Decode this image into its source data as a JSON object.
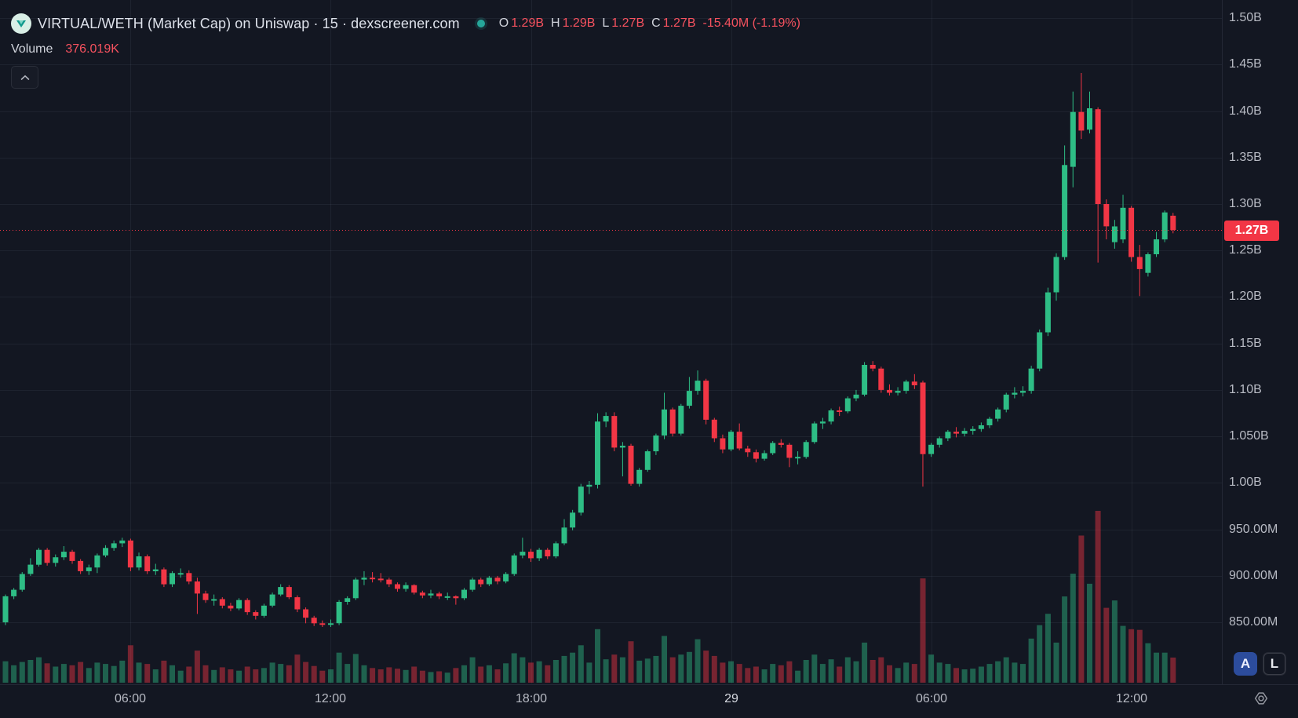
{
  "header": {
    "title": "VIRTUAL/WETH (Market Cap) on Uniswap · 15 · dexscreener.com",
    "logo": "virtual-token-logo",
    "status_icon": "data-status-dot",
    "ohlc": {
      "open_label": "O",
      "open_value": "1.29B",
      "high_label": "H",
      "high_value": "1.29B",
      "low_label": "L",
      "low_value": "1.27B",
      "close_label": "C",
      "close_value": "1.27B",
      "change": "-15.40M (-1.19%)"
    },
    "volume_label": "Volume",
    "volume_value": "376.019K",
    "collapse_icon": "chevron-up"
  },
  "price_axis": {
    "last_price_label": "1.27B"
  },
  "buttons": {
    "auto_label": "A",
    "log_label": "L",
    "settings_icon": "gear"
  },
  "colors": {
    "background": "#131722",
    "up": "#2ebd85",
    "down": "#f23645",
    "grid": "rgba(170,180,210,0.08)",
    "axis_text": "#b8bbc4",
    "legend_text": "#d1d4dc",
    "value_text": "#f7525f",
    "badge_bg": "#f23645",
    "status_dot": "#26a69a"
  },
  "chart_data": {
    "type": "candlestick_with_volume",
    "title": "VIRTUAL/WETH (Market Cap) on Uniswap",
    "interval": "15m",
    "price_unit": "B (market cap)",
    "volume_unit": "K",
    "ylim": [
      0.802,
      1.5195
    ],
    "grid": true,
    "last_price": 1.272,
    "y_ticks": [
      {
        "label": "1.50B",
        "value": 1.5
      },
      {
        "label": "1.45B",
        "value": 1.45
      },
      {
        "label": "1.40B",
        "value": 1.4
      },
      {
        "label": "1.35B",
        "value": 1.35
      },
      {
        "label": "1.30B",
        "value": 1.3
      },
      {
        "label": "1.25B",
        "value": 1.25
      },
      {
        "label": "1.20B",
        "value": 1.2
      },
      {
        "label": "1.15B",
        "value": 1.15
      },
      {
        "label": "1.10B",
        "value": 1.1
      },
      {
        "label": "1.050B",
        "value": 1.05
      },
      {
        "label": "1.00B",
        "value": 1.0
      },
      {
        "label": "950.00M",
        "value": 0.95
      },
      {
        "label": "900.00M",
        "value": 0.9
      },
      {
        "label": "850.00M",
        "value": 0.85
      }
    ],
    "x_ticks": [
      {
        "label": "06:00",
        "index": 15,
        "day_change": false
      },
      {
        "label": "12:00",
        "index": 39,
        "day_change": false
      },
      {
        "label": "18:00",
        "index": 63,
        "day_change": false
      },
      {
        "label": "29",
        "index": 87,
        "day_change": true
      },
      {
        "label": "06:00",
        "index": 111,
        "day_change": false
      },
      {
        "label": "12:00",
        "index": 135,
        "day_change": false
      }
    ],
    "candles_format": [
      "open",
      "high",
      "low",
      "close",
      "volume"
    ],
    "candles": [
      [
        0.85,
        0.88,
        0.847,
        0.878,
        320
      ],
      [
        0.878,
        0.887,
        0.875,
        0.885,
        260
      ],
      [
        0.885,
        0.904,
        0.883,
        0.902,
        310
      ],
      [
        0.902,
        0.919,
        0.9,
        0.912,
        340
      ],
      [
        0.912,
        0.93,
        0.91,
        0.928,
        380
      ],
      [
        0.928,
        0.93,
        0.911,
        0.914,
        290
      ],
      [
        0.914,
        0.923,
        0.91,
        0.92,
        240
      ],
      [
        0.92,
        0.932,
        0.917,
        0.926,
        280
      ],
      [
        0.926,
        0.928,
        0.913,
        0.916,
        260
      ],
      [
        0.916,
        0.918,
        0.902,
        0.905,
        310
      ],
      [
        0.905,
        0.912,
        0.901,
        0.909,
        220
      ],
      [
        0.909,
        0.924,
        0.903,
        0.922,
        300
      ],
      [
        0.922,
        0.933,
        0.92,
        0.93,
        280
      ],
      [
        0.93,
        0.938,
        0.927,
        0.935,
        250
      ],
      [
        0.935,
        0.941,
        0.931,
        0.938,
        330
      ],
      [
        0.938,
        0.94,
        0.905,
        0.909,
        560
      ],
      [
        0.909,
        0.925,
        0.906,
        0.921,
        300
      ],
      [
        0.921,
        0.923,
        0.902,
        0.905,
        280
      ],
      [
        0.905,
        0.913,
        0.901,
        0.907,
        200
      ],
      [
        0.907,
        0.909,
        0.888,
        0.891,
        330
      ],
      [
        0.891,
        0.905,
        0.888,
        0.903,
        260
      ],
      [
        0.903,
        0.908,
        0.898,
        0.903,
        180
      ],
      [
        0.903,
        0.906,
        0.891,
        0.894,
        240
      ],
      [
        0.894,
        0.898,
        0.859,
        0.881,
        480
      ],
      [
        0.881,
        0.884,
        0.871,
        0.874,
        260
      ],
      [
        0.874,
        0.88,
        0.868,
        0.875,
        190
      ],
      [
        0.875,
        0.877,
        0.865,
        0.868,
        230
      ],
      [
        0.868,
        0.871,
        0.862,
        0.865,
        200
      ],
      [
        0.865,
        0.876,
        0.863,
        0.874,
        180
      ],
      [
        0.874,
        0.876,
        0.858,
        0.861,
        240
      ],
      [
        0.861,
        0.863,
        0.853,
        0.857,
        200
      ],
      [
        0.857,
        0.87,
        0.855,
        0.868,
        220
      ],
      [
        0.868,
        0.882,
        0.866,
        0.88,
        300
      ],
      [
        0.88,
        0.891,
        0.878,
        0.888,
        280
      ],
      [
        0.888,
        0.89,
        0.875,
        0.877,
        260
      ],
      [
        0.877,
        0.879,
        0.861,
        0.864,
        420
      ],
      [
        0.864,
        0.866,
        0.849,
        0.855,
        310
      ],
      [
        0.855,
        0.857,
        0.846,
        0.849,
        250
      ],
      [
        0.849,
        0.852,
        0.845,
        0.848,
        180
      ],
      [
        0.848,
        0.853,
        0.845,
        0.849,
        200
      ],
      [
        0.849,
        0.874,
        0.847,
        0.872,
        450
      ],
      [
        0.872,
        0.878,
        0.869,
        0.876,
        280
      ],
      [
        0.876,
        0.898,
        0.874,
        0.896,
        430
      ],
      [
        0.896,
        0.905,
        0.89,
        0.898,
        260
      ],
      [
        0.898,
        0.904,
        0.893,
        0.897,
        220
      ],
      [
        0.897,
        0.903,
        0.893,
        0.896,
        200
      ],
      [
        0.896,
        0.898,
        0.888,
        0.891,
        230
      ],
      [
        0.891,
        0.893,
        0.883,
        0.886,
        210
      ],
      [
        0.886,
        0.893,
        0.883,
        0.89,
        190
      ],
      [
        0.89,
        0.891,
        0.88,
        0.882,
        240
      ],
      [
        0.882,
        0.884,
        0.876,
        0.879,
        180
      ],
      [
        0.879,
        0.885,
        0.876,
        0.881,
        160
      ],
      [
        0.881,
        0.883,
        0.875,
        0.878,
        170
      ],
      [
        0.878,
        0.882,
        0.874,
        0.878,
        150
      ],
      [
        0.878,
        0.879,
        0.869,
        0.876,
        220
      ],
      [
        0.876,
        0.887,
        0.874,
        0.885,
        260
      ],
      [
        0.885,
        0.898,
        0.883,
        0.896,
        380
      ],
      [
        0.896,
        0.898,
        0.888,
        0.891,
        240
      ],
      [
        0.891,
        0.9,
        0.889,
        0.898,
        260
      ],
      [
        0.898,
        0.9,
        0.891,
        0.894,
        200
      ],
      [
        0.894,
        0.904,
        0.892,
        0.902,
        290
      ],
      [
        0.902,
        0.924,
        0.9,
        0.922,
        440
      ],
      [
        0.922,
        0.941,
        0.919,
        0.926,
        380
      ],
      [
        0.926,
        0.929,
        0.915,
        0.919,
        300
      ],
      [
        0.919,
        0.93,
        0.916,
        0.928,
        320
      ],
      [
        0.928,
        0.93,
        0.918,
        0.921,
        260
      ],
      [
        0.921,
        0.937,
        0.919,
        0.935,
        340
      ],
      [
        0.935,
        0.961,
        0.933,
        0.952,
        400
      ],
      [
        0.952,
        0.971,
        0.949,
        0.968,
        450
      ],
      [
        0.968,
        0.999,
        0.965,
        0.996,
        560
      ],
      [
        0.996,
        1.002,
        0.988,
        0.998,
        300
      ],
      [
        0.998,
        1.075,
        0.994,
        1.066,
        800
      ],
      [
        1.066,
        1.076,
        1.06,
        1.072,
        350
      ],
      [
        1.072,
        1.076,
        1.034,
        1.038,
        420
      ],
      [
        1.038,
        1.044,
        1.007,
        1.04,
        380
      ],
      [
        1.04,
        1.042,
        0.997,
        0.999,
        620
      ],
      [
        0.999,
        1.016,
        0.996,
        1.014,
        330
      ],
      [
        1.014,
        1.036,
        1.012,
        1.034,
        360
      ],
      [
        1.034,
        1.053,
        1.03,
        1.051,
        400
      ],
      [
        1.051,
        1.097,
        1.047,
        1.079,
        700
      ],
      [
        1.079,
        1.081,
        1.05,
        1.053,
        380
      ],
      [
        1.053,
        1.085,
        1.051,
        1.083,
        420
      ],
      [
        1.083,
        1.114,
        1.08,
        1.099,
        460
      ],
      [
        1.099,
        1.121,
        1.095,
        1.11,
        650
      ],
      [
        1.11,
        1.112,
        1.063,
        1.068,
        480
      ],
      [
        1.068,
        1.07,
        1.044,
        1.048,
        400
      ],
      [
        1.048,
        1.052,
        1.032,
        1.036,
        300
      ],
      [
        1.036,
        1.057,
        1.034,
        1.055,
        320
      ],
      [
        1.055,
        1.064,
        1.035,
        1.037,
        280
      ],
      [
        1.037,
        1.04,
        1.028,
        1.033,
        220
      ],
      [
        1.033,
        1.036,
        1.022,
        1.026,
        240
      ],
      [
        1.026,
        1.035,
        1.024,
        1.032,
        200
      ],
      [
        1.032,
        1.045,
        1.03,
        1.043,
        280
      ],
      [
        1.043,
        1.047,
        1.038,
        1.041,
        260
      ],
      [
        1.041,
        1.043,
        1.017,
        1.027,
        320
      ],
      [
        1.027,
        1.034,
        1.02,
        1.028,
        180
      ],
      [
        1.028,
        1.046,
        1.026,
        1.044,
        340
      ],
      [
        1.044,
        1.066,
        1.042,
        1.064,
        420
      ],
      [
        1.064,
        1.07,
        1.058,
        1.066,
        280
      ],
      [
        1.066,
        1.08,
        1.063,
        1.078,
        350
      ],
      [
        1.078,
        1.082,
        1.072,
        1.077,
        240
      ],
      [
        1.077,
        1.093,
        1.075,
        1.091,
        380
      ],
      [
        1.091,
        1.1,
        1.088,
        1.095,
        320
      ],
      [
        1.095,
        1.13,
        1.093,
        1.127,
        600
      ],
      [
        1.127,
        1.131,
        1.12,
        1.123,
        340
      ],
      [
        1.123,
        1.125,
        1.097,
        1.1,
        380
      ],
      [
        1.1,
        1.106,
        1.094,
        1.097,
        260
      ],
      [
        1.097,
        1.103,
        1.094,
        1.099,
        220
      ],
      [
        1.099,
        1.111,
        1.096,
        1.109,
        300
      ],
      [
        1.109,
        1.117,
        1.101,
        1.105,
        280
      ],
      [
        1.108,
        1.11,
        0.996,
        1.031,
        1560
      ],
      [
        1.031,
        1.043,
        1.028,
        1.041,
        420
      ],
      [
        1.041,
        1.05,
        1.038,
        1.048,
        300
      ],
      [
        1.048,
        1.057,
        1.045,
        1.055,
        280
      ],
      [
        1.055,
        1.06,
        1.049,
        1.053,
        220
      ],
      [
        1.053,
        1.059,
        1.05,
        1.056,
        200
      ],
      [
        1.056,
        1.061,
        1.052,
        1.058,
        210
      ],
      [
        1.058,
        1.065,
        1.055,
        1.062,
        240
      ],
      [
        1.062,
        1.071,
        1.059,
        1.069,
        280
      ],
      [
        1.069,
        1.081,
        1.066,
        1.079,
        320
      ],
      [
        1.079,
        1.097,
        1.076,
        1.095,
        380
      ],
      [
        1.095,
        1.103,
        1.091,
        1.097,
        300
      ],
      [
        1.097,
        1.104,
        1.093,
        1.099,
        280
      ],
      [
        1.099,
        1.126,
        1.096,
        1.123,
        660
      ],
      [
        1.123,
        1.165,
        1.12,
        1.162,
        860
      ],
      [
        1.162,
        1.21,
        1.158,
        1.205,
        1030
      ],
      [
        1.205,
        1.247,
        1.196,
        1.243,
        600
      ],
      [
        1.243,
        1.363,
        1.24,
        1.342,
        1290
      ],
      [
        1.34,
        1.421,
        1.318,
        1.399,
        1630
      ],
      [
        1.399,
        1.441,
        1.37,
        1.379,
        2200
      ],
      [
        1.38,
        1.421,
        1.376,
        1.403,
        1480
      ],
      [
        1.402,
        1.404,
        1.237,
        1.3,
        2570
      ],
      [
        1.3,
        1.305,
        1.262,
        1.276,
        1120
      ],
      [
        1.259,
        1.283,
        1.252,
        1.276,
        1230
      ],
      [
        1.262,
        1.31,
        1.258,
        1.296,
        850
      ],
      [
        1.296,
        1.298,
        1.238,
        1.243,
        800
      ],
      [
        1.243,
        1.256,
        1.201,
        1.23,
        790
      ],
      [
        1.226,
        1.248,
        1.222,
        1.246,
        590
      ],
      [
        1.246,
        1.27,
        1.243,
        1.262,
        450
      ],
      [
        1.262,
        1.293,
        1.259,
        1.291,
        450
      ],
      [
        1.2874,
        1.2905,
        1.2685,
        1.272,
        376
      ]
    ]
  }
}
